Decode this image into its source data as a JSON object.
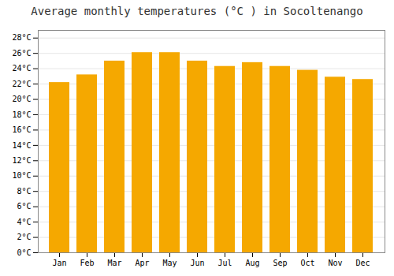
{
  "chart_data": {
    "type": "bar",
    "title": "Average monthly temperatures (°C ) in Socoltenango",
    "categories": [
      "Jan",
      "Feb",
      "Mar",
      "Apr",
      "May",
      "Jun",
      "Jul",
      "Aug",
      "Sep",
      "Oct",
      "Nov",
      "Dec"
    ],
    "values": [
      22.2,
      23.2,
      25.0,
      26.1,
      26.1,
      25.0,
      24.3,
      24.8,
      24.3,
      23.8,
      22.9,
      22.6
    ],
    "color": "#F5A800",
    "ylim": [
      0,
      29
    ],
    "yticks": [
      {
        "value": 0,
        "label": "0°C"
      },
      {
        "value": 2,
        "label": "2°C"
      },
      {
        "value": 4,
        "label": "4°C"
      },
      {
        "value": 6,
        "label": "6°C"
      },
      {
        "value": 8,
        "label": "8°C"
      },
      {
        "value": 10,
        "label": "10°C"
      },
      {
        "value": 12,
        "label": "12°C"
      },
      {
        "value": 14,
        "label": "14°C"
      },
      {
        "value": 16,
        "label": "16°C"
      },
      {
        "value": 18,
        "label": "18°C"
      },
      {
        "value": 20,
        "label": "20°C"
      },
      {
        "value": 22,
        "label": "22°C"
      },
      {
        "value": 24,
        "label": "24°C"
      },
      {
        "value": 26,
        "label": "26°C"
      },
      {
        "value": 28,
        "label": "28°C"
      }
    ],
    "grid": true
  }
}
